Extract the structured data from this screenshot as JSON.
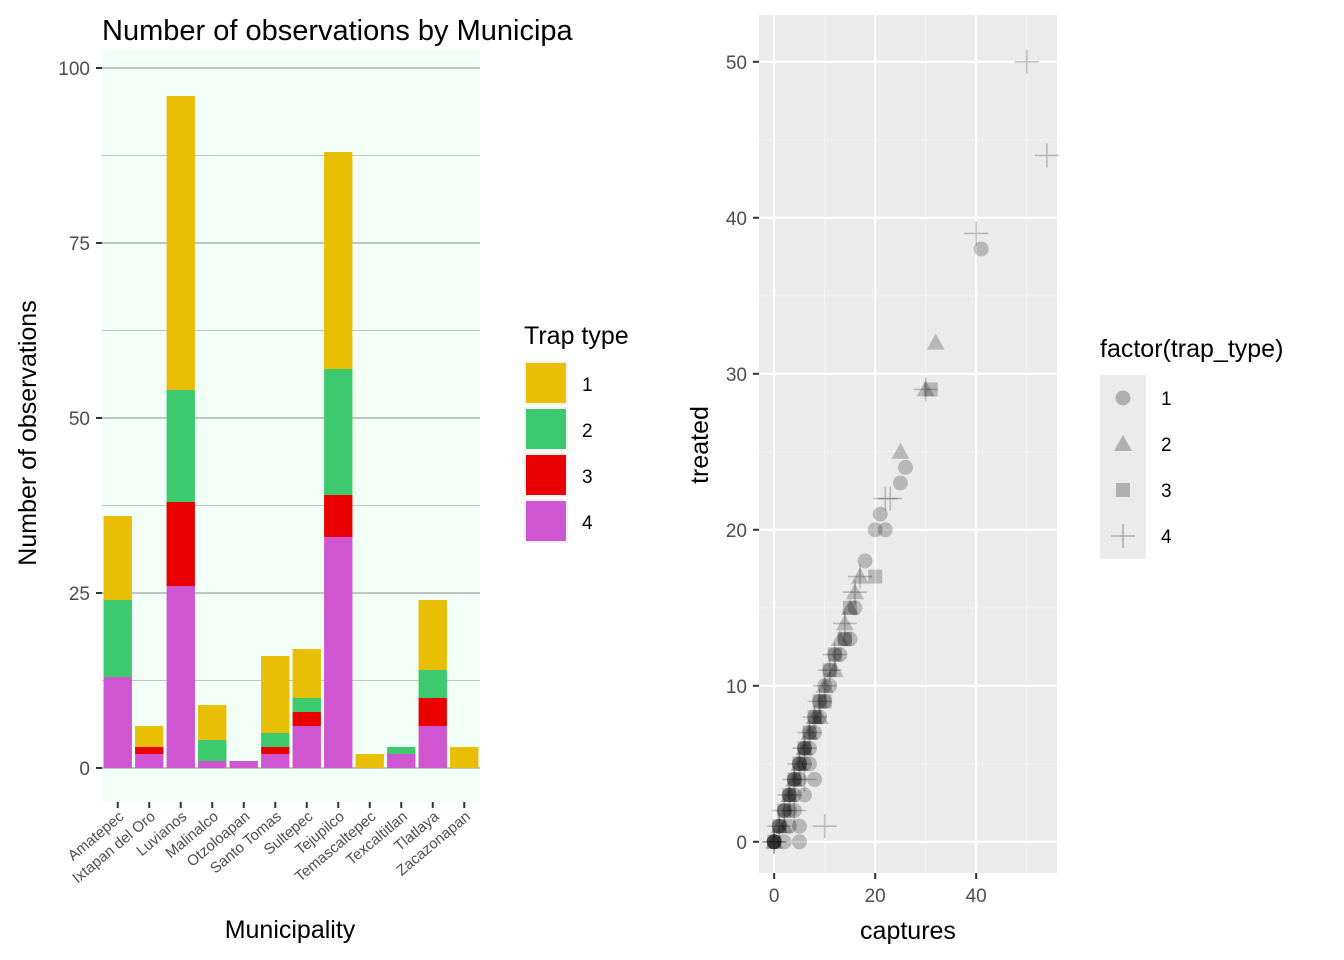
{
  "chart_data": [
    {
      "type": "bar",
      "stacked": true,
      "title": "Number of observations by Municipa",
      "xlabel": "Municipality",
      "ylabel": "Number of observations",
      "ylim": [
        0,
        100
      ],
      "yticks": [
        0,
        25,
        50,
        75,
        100
      ],
      "categories": [
        "Amatepec",
        "Ixtapan del Oro",
        "Luvianos",
        "Malinalco",
        "Otzoloapan",
        "Santo Tomas",
        "Sultepec",
        "Tejupilco",
        "Temascaltepec",
        "Texcaltitlan",
        "Tlatlaya",
        "Zacazonapan"
      ],
      "series": [
        {
          "name": "4",
          "color": "#CF55D1",
          "values": [
            13,
            2,
            26,
            1,
            1,
            2,
            6,
            33,
            0,
            2,
            6,
            0
          ]
        },
        {
          "name": "3",
          "color": "#EA0000",
          "values": [
            0,
            1,
            12,
            0,
            0,
            1,
            2,
            6,
            0,
            0,
            4,
            0
          ]
        },
        {
          "name": "2",
          "color": "#3DCA6E",
          "values": [
            11,
            0,
            16,
            3,
            0,
            2,
            2,
            18,
            0,
            1,
            4,
            0
          ]
        },
        {
          "name": "1",
          "color": "#E9BF06",
          "values": [
            12,
            3,
            42,
            5,
            0,
            11,
            7,
            31,
            2,
            0,
            10,
            3
          ]
        }
      ],
      "legend": {
        "title": "Trap type",
        "placement": "right",
        "items": [
          {
            "label": "1",
            "color": "#E9BF06"
          },
          {
            "label": "2",
            "color": "#3DCA6E"
          },
          {
            "label": "3",
            "color": "#EA0000"
          },
          {
            "label": "4",
            "color": "#CF55D1"
          }
        ]
      },
      "grid": true,
      "panel_background": "#F2FFF6"
    },
    {
      "type": "scatter",
      "title": "",
      "xlabel": "captures",
      "ylabel": "treated",
      "xlim": [
        -3,
        56
      ],
      "ylim": [
        -2,
        53
      ],
      "xticks": [
        0,
        20,
        40
      ],
      "yticks": [
        0,
        10,
        20,
        30,
        40,
        50
      ],
      "legend": {
        "title": "factor(trap_type)",
        "placement": "right",
        "items": [
          {
            "label": "1",
            "shape": "circle"
          },
          {
            "label": "2",
            "shape": "triangle"
          },
          {
            "label": "3",
            "shape": "square"
          },
          {
            "label": "4",
            "shape": "plus"
          }
        ]
      },
      "grid": true,
      "point_alpha": 0.22,
      "series": [
        {
          "trap_type": "1",
          "shape": "circle",
          "points": [
            [
              0,
              0
            ],
            [
              0,
              0
            ],
            [
              0,
              0
            ],
            [
              0,
              0
            ],
            [
              1,
              1
            ],
            [
              1,
              1
            ],
            [
              2,
              2
            ],
            [
              2,
              2
            ],
            [
              3,
              2
            ],
            [
              3,
              3
            ],
            [
              3,
              3
            ],
            [
              4,
              3
            ],
            [
              4,
              4
            ],
            [
              4,
              4
            ],
            [
              5,
              5
            ],
            [
              5,
              5
            ],
            [
              5,
              4
            ],
            [
              6,
              5
            ],
            [
              6,
              6
            ],
            [
              6,
              6
            ],
            [
              7,
              6
            ],
            [
              7,
              7
            ],
            [
              8,
              7
            ],
            [
              8,
              8
            ],
            [
              9,
              8
            ],
            [
              9,
              9
            ],
            [
              10,
              9
            ],
            [
              10,
              10
            ],
            [
              11,
              10
            ],
            [
              11,
              11
            ],
            [
              12,
              12
            ],
            [
              13,
              12
            ],
            [
              14,
              13
            ],
            [
              15,
              13
            ],
            [
              16,
              15
            ],
            [
              18,
              18
            ],
            [
              20,
              20
            ],
            [
              21,
              21
            ],
            [
              22,
              20
            ],
            [
              25,
              23
            ],
            [
              26,
              24
            ],
            [
              41,
              38
            ],
            [
              3,
              1
            ],
            [
              5,
              1
            ],
            [
              5,
              0
            ],
            [
              4,
              2
            ],
            [
              6,
              3
            ],
            [
              8,
              4
            ],
            [
              2,
              0
            ],
            [
              7,
              5
            ]
          ]
        },
        {
          "trap_type": "2",
          "shape": "triangle",
          "points": [
            [
              0,
              0
            ],
            [
              1,
              1
            ],
            [
              2,
              1
            ],
            [
              3,
              3
            ],
            [
              4,
              4
            ],
            [
              5,
              5
            ],
            [
              6,
              6
            ],
            [
              7,
              7
            ],
            [
              8,
              8
            ],
            [
              9,
              8
            ],
            [
              10,
              10
            ],
            [
              12,
              11
            ],
            [
              13,
              13
            ],
            [
              14,
              14
            ],
            [
              15,
              15
            ],
            [
              16,
              16
            ],
            [
              17,
              17
            ],
            [
              25,
              25
            ],
            [
              30,
              29
            ],
            [
              32,
              32
            ]
          ]
        },
        {
          "trap_type": "3",
          "shape": "square",
          "points": [
            [
              0,
              0
            ],
            [
              1,
              1
            ],
            [
              2,
              2
            ],
            [
              3,
              3
            ],
            [
              4,
              4
            ],
            [
              5,
              5
            ],
            [
              6,
              6
            ],
            [
              7,
              7
            ],
            [
              8,
              8
            ],
            [
              9,
              9
            ],
            [
              10,
              9
            ],
            [
              11,
              11
            ],
            [
              12,
              12
            ],
            [
              14,
              13
            ],
            [
              15,
              15
            ],
            [
              20,
              17
            ],
            [
              31,
              29
            ]
          ]
        },
        {
          "trap_type": "4",
          "shape": "plus",
          "points": [
            [
              0,
              0
            ],
            [
              0,
              0
            ],
            [
              1,
              1
            ],
            [
              2,
              2
            ],
            [
              3,
              3
            ],
            [
              4,
              4
            ],
            [
              5,
              5
            ],
            [
              6,
              6
            ],
            [
              7,
              7
            ],
            [
              8,
              8
            ],
            [
              9,
              9
            ],
            [
              10,
              10
            ],
            [
              11,
              11
            ],
            [
              12,
              12
            ],
            [
              14,
              14
            ],
            [
              16,
              16
            ],
            [
              17,
              17
            ],
            [
              22,
              22
            ],
            [
              23,
              22
            ],
            [
              30,
              29
            ],
            [
              40,
              39
            ],
            [
              50,
              50
            ],
            [
              54,
              44
            ],
            [
              10,
              1
            ],
            [
              6,
              4
            ],
            [
              4,
              2
            ]
          ]
        }
      ]
    }
  ]
}
